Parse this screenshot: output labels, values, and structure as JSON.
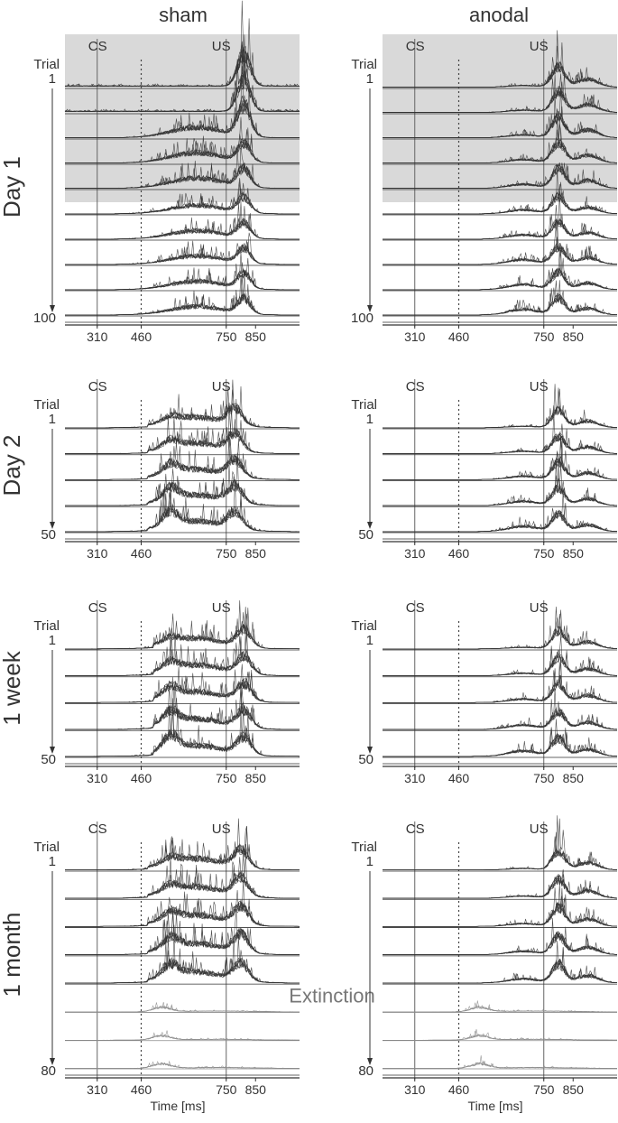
{
  "columns": [
    "sham",
    "anodal"
  ],
  "rows": [
    {
      "label": "Day 1",
      "first_trial": "1",
      "last_trial": "100",
      "n_traces": 10,
      "shaded_traces": 5
    },
    {
      "label": "Day 2",
      "first_trial": "1",
      "last_trial": "50",
      "n_traces": 5,
      "shaded_traces": 0
    },
    {
      "label": "1 week",
      "first_trial": "1",
      "last_trial": "50",
      "n_traces": 5,
      "shaded_traces": 0
    },
    {
      "label": "1 month",
      "first_trial": "1",
      "last_trial": "80",
      "n_traces": 8,
      "extinction_from": 5,
      "shaded_traces": 0
    }
  ],
  "labels": {
    "trial": "Trial",
    "cs": "CS",
    "us": "US",
    "extinction": "Extinction",
    "xlabel": "Time [ms]"
  },
  "colors": {
    "shade": "#d9d9d9",
    "trace": "#333333",
    "extinction_trace": "#8a8a8a",
    "axis": "#333333"
  },
  "chart_data": {
    "type": "line",
    "description_units": "EMG traces stacked by trial block; x in ms",
    "xlim": [
      200,
      1000
    ],
    "xticks": [
      310,
      460,
      750,
      850
    ],
    "xtick_labels": [
      "310",
      "460",
      "750",
      "850"
    ],
    "cs_time": 310,
    "cs_window_end": 460,
    "us_time": 750,
    "panels": [
      {
        "row": "Day 1",
        "column": "sham",
        "response": "late",
        "onset": 560,
        "peak": 810
      },
      {
        "row": "Day 1",
        "column": "anodal",
        "response": "us-locked",
        "onset": 660,
        "peak": 800
      },
      {
        "row": "Day 2",
        "column": "sham",
        "response": "broad",
        "onset": 480,
        "peak": 780
      },
      {
        "row": "Day 2",
        "column": "anodal",
        "response": "us-locked",
        "onset": 600,
        "peak": 800
      },
      {
        "row": "1 week",
        "column": "sham",
        "response": "broad",
        "onset": 500,
        "peak": 810
      },
      {
        "row": "1 week",
        "column": "anodal",
        "response": "us-locked",
        "onset": 600,
        "peak": 800
      },
      {
        "row": "1 month",
        "column": "sham",
        "response": "broad",
        "onset": 480,
        "peak": 800
      },
      {
        "row": "1 month",
        "column": "anodal",
        "response": "us-locked",
        "onset": 580,
        "peak": 800
      }
    ]
  }
}
